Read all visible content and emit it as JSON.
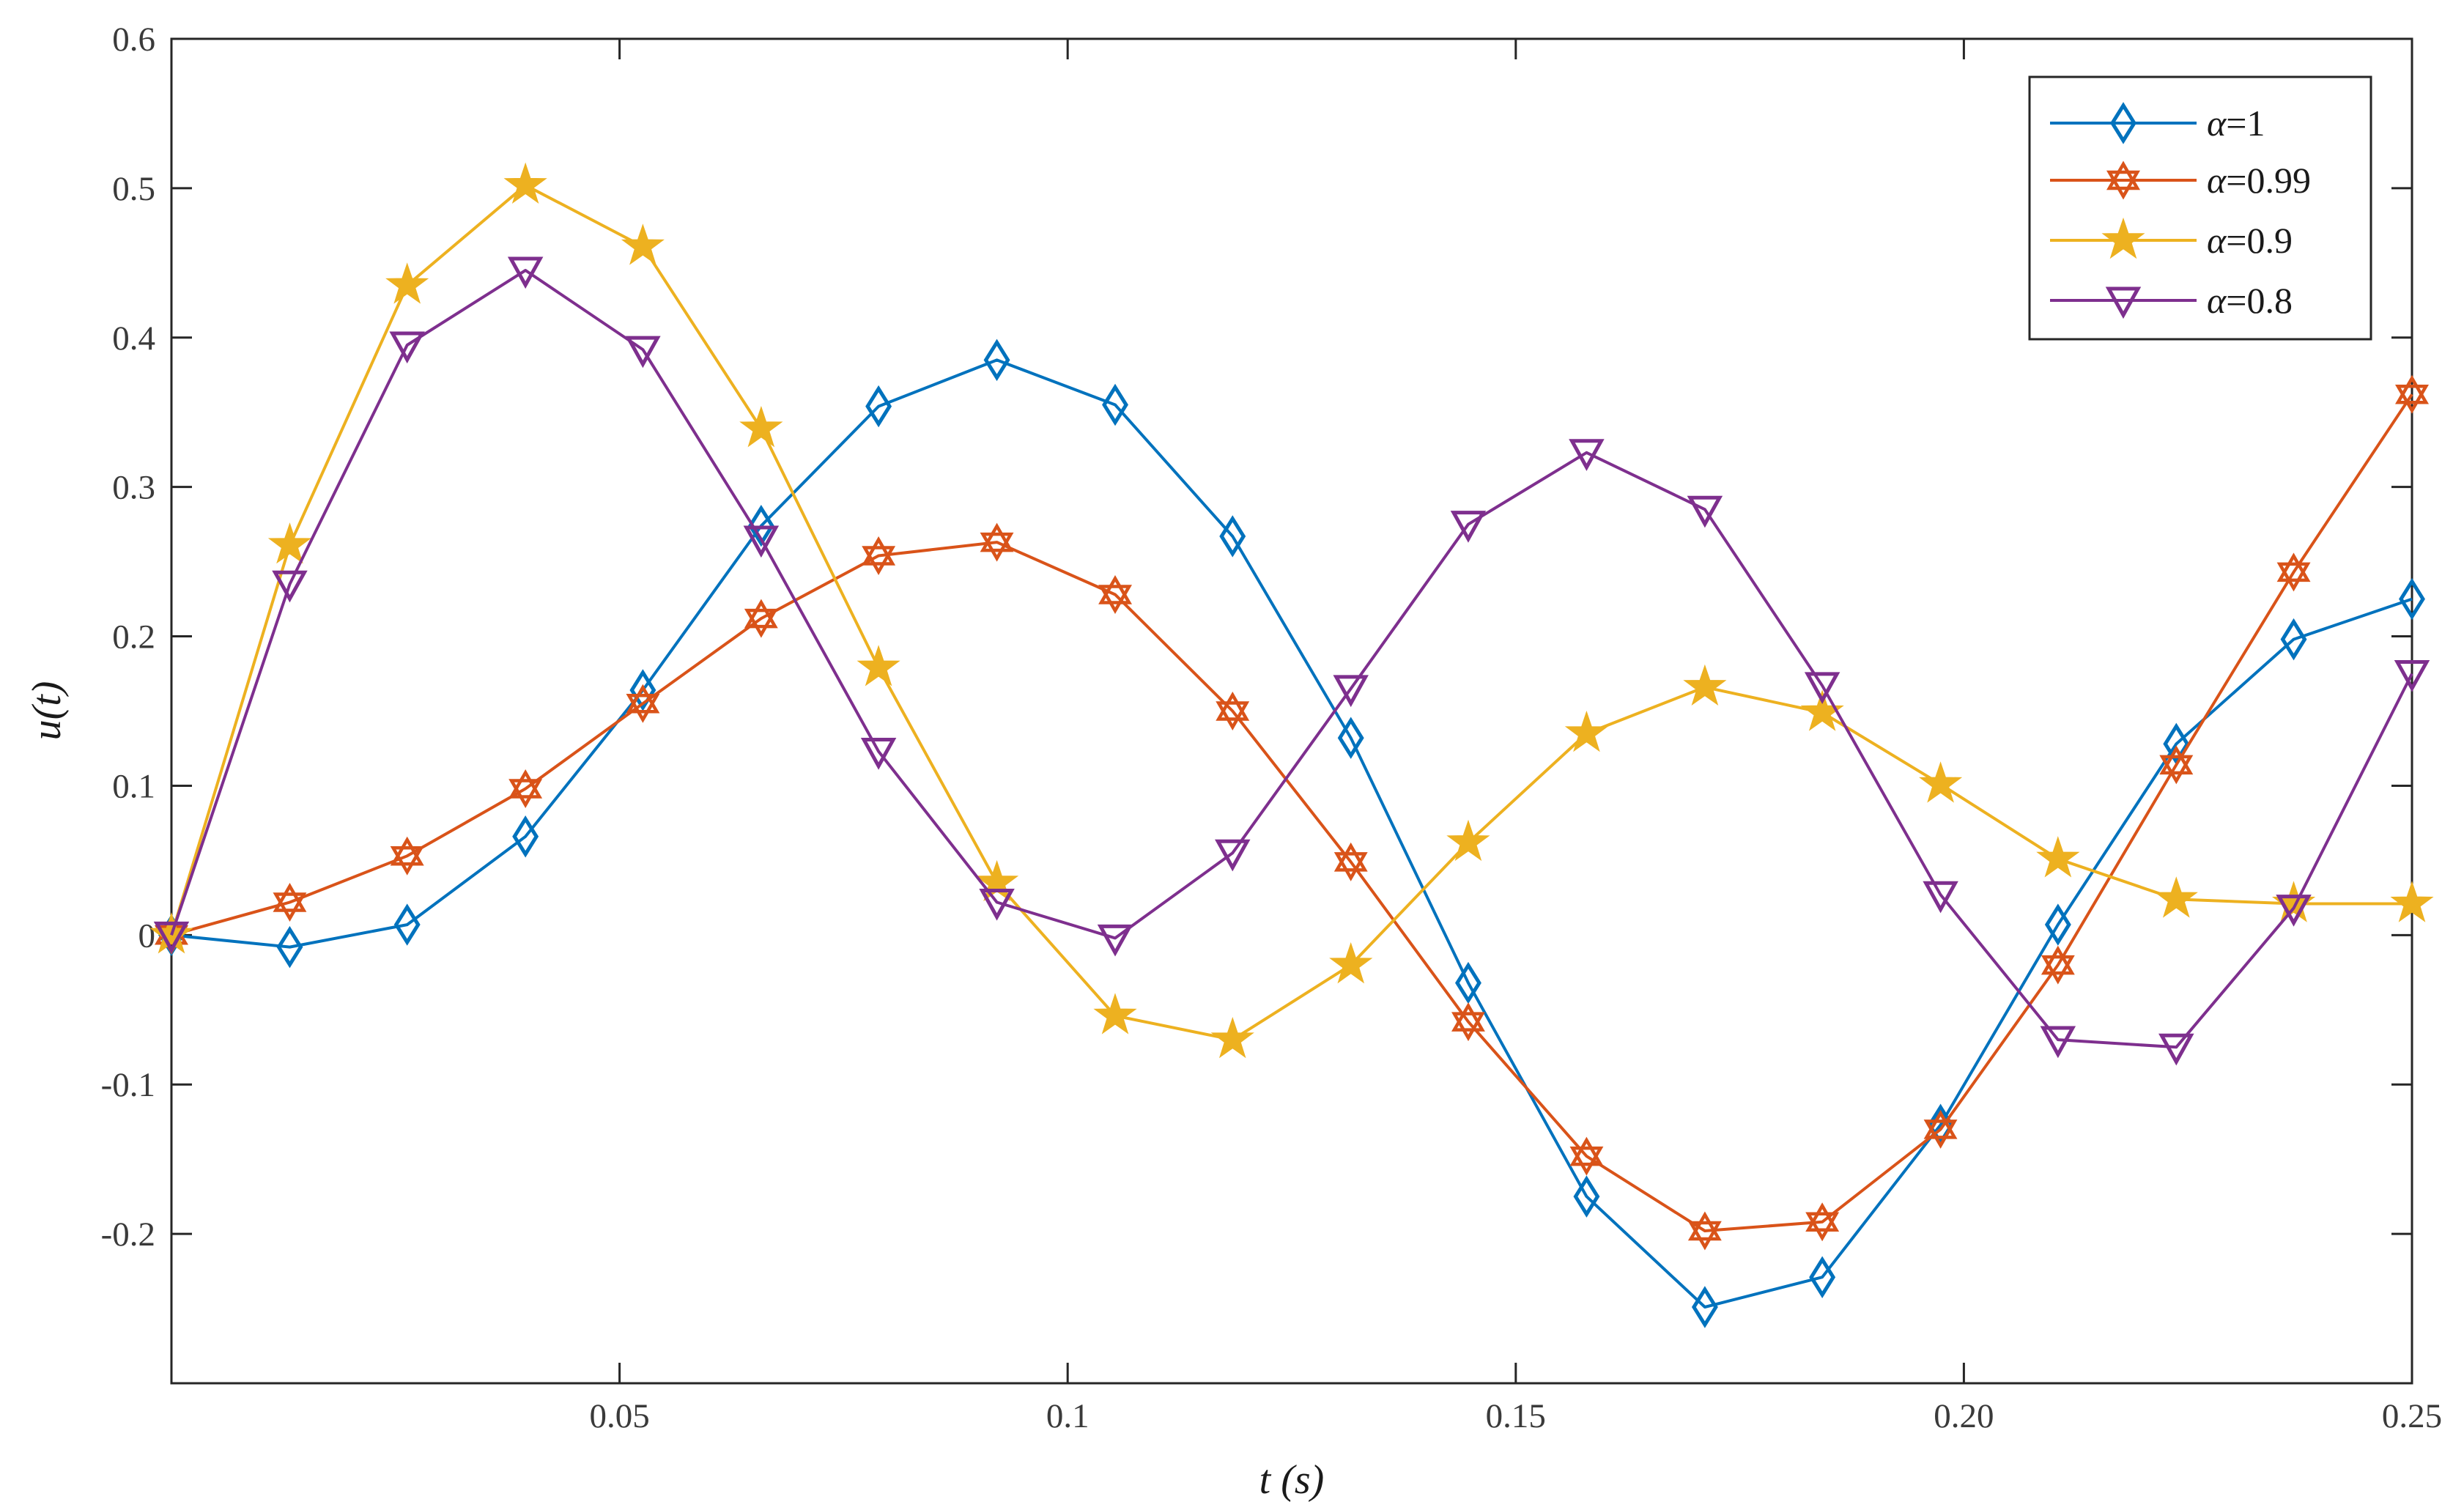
{
  "chart_data": {
    "type": "line",
    "xlabel": "t (s)",
    "ylabel": "u(t)",
    "xlim": [
      0,
      0.25
    ],
    "ylim": [
      -0.3,
      0.6
    ],
    "grid": false,
    "legend_position": "top-right",
    "x_ticks": [
      {
        "value": 0.05,
        "label": "0.05"
      },
      {
        "value": 0.1,
        "label": "0.1"
      },
      {
        "value": 0.15,
        "label": "0.15"
      },
      {
        "value": 0.2,
        "label": "0.20"
      },
      {
        "value": 0.25,
        "label": "0.25"
      }
    ],
    "y_ticks": [
      {
        "value": 0.6,
        "label": "0.6"
      },
      {
        "value": 0.5,
        "label": "0.5"
      },
      {
        "value": 0.4,
        "label": "0.4"
      },
      {
        "value": 0.3,
        "label": "0.3"
      },
      {
        "value": 0.2,
        "label": "0.2"
      },
      {
        "value": 0.1,
        "label": "0.1"
      },
      {
        "value": 0,
        "label": "0"
      },
      {
        "value": -0.1,
        "label": "-0.1"
      },
      {
        "value": -0.2,
        "label": "-0.2"
      }
    ],
    "x": [
      0,
      0.0132,
      0.0263,
      0.0395,
      0.0526,
      0.0658,
      0.0789,
      0.0921,
      0.1053,
      0.1184,
      0.1316,
      0.1447,
      0.1579,
      0.1711,
      0.1842,
      0.1974,
      0.2105,
      0.2237,
      0.2368,
      0.25
    ],
    "series": [
      {
        "name": "α=1",
        "name_symbol": "α",
        "name_value": "=1",
        "color": "#0072BD",
        "marker": "diamond",
        "values": [
          0,
          -0.008,
          0.007,
          0.066,
          0.164,
          0.274,
          0.354,
          0.385,
          0.355,
          0.267,
          0.132,
          -0.032,
          -0.175,
          -0.249,
          -0.229,
          -0.127,
          0.007,
          0.128,
          0.198,
          0.225
        ]
      },
      {
        "name": "α=0.99",
        "name_symbol": "α",
        "name_value": "=0.99",
        "color": "#D95319",
        "marker": "hexagram",
        "values": [
          0,
          0.022,
          0.053,
          0.098,
          0.155,
          0.212,
          0.254,
          0.263,
          0.228,
          0.15,
          0.049,
          -0.058,
          -0.148,
          -0.198,
          -0.192,
          -0.13,
          -0.02,
          0.114,
          0.243,
          0.362
        ]
      },
      {
        "name": "α=0.9",
        "name_symbol": "α",
        "name_value": "=0.9",
        "color": "#EDB120",
        "marker": "pentagram",
        "values": [
          0,
          0.261,
          0.435,
          0.502,
          0.461,
          0.339,
          0.179,
          0.035,
          -0.054,
          -0.07,
          -0.02,
          0.062,
          0.135,
          0.166,
          0.149,
          0.101,
          0.051,
          0.024,
          0.021,
          0.021
        ]
      },
      {
        "name": "α=0.8",
        "name_symbol": "α",
        "name_value": "=0.8",
        "color": "#7E2F8E",
        "marker": "triangle-down",
        "values": [
          0,
          0.235,
          0.395,
          0.445,
          0.392,
          0.265,
          0.123,
          0.022,
          -0.002,
          0.055,
          0.165,
          0.275,
          0.323,
          0.285,
          0.167,
          0.027,
          -0.07,
          -0.075,
          0.018,
          0.175
        ]
      }
    ]
  }
}
